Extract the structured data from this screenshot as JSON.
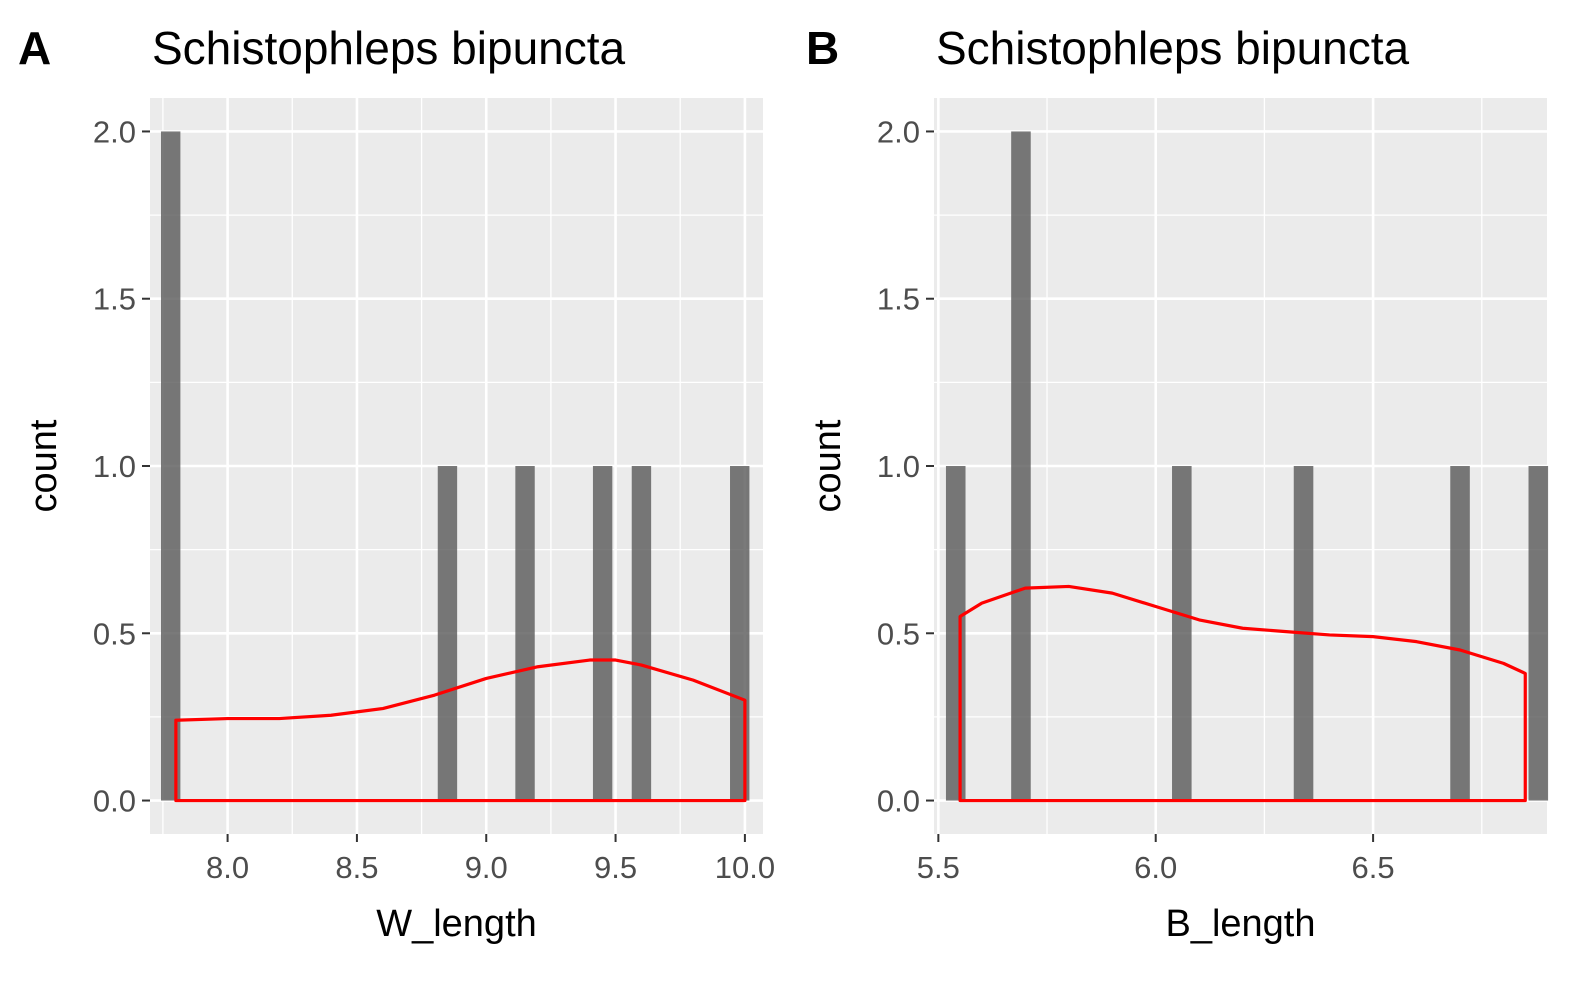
{
  "colors": {
    "panel_background": "#ebebeb",
    "grid_major": "#ffffff",
    "bar_fill": "#595959",
    "density_line": "#ff0000",
    "tick": "#333333",
    "tick_text": "#4d4d4d"
  },
  "chart_data": [
    {
      "type": "bar",
      "panel_tag": "A",
      "title": "Schistophleps bipuncta",
      "xlabel": "W_length",
      "ylabel": "count",
      "xlim": [
        7.7,
        10.07
      ],
      "ylim": [
        -0.1,
        2.1
      ],
      "x_ticks": [
        8.0,
        8.5,
        9.0,
        9.5,
        10.0
      ],
      "x_tick_labels": [
        "8.0",
        "8.5",
        "9.0",
        "9.5",
        "10.0"
      ],
      "x_minor": [
        7.75,
        8.25,
        8.75,
        9.25,
        9.75
      ],
      "y_ticks": [
        0.0,
        0.5,
        1.0,
        1.5,
        2.0
      ],
      "y_tick_labels": [
        "0.0",
        "0.5",
        "1.0",
        "1.5",
        "2.0"
      ],
      "bin_width": 0.075,
      "bins": [
        {
          "x": 7.78,
          "count": 2
        },
        {
          "x": 8.85,
          "count": 1
        },
        {
          "x": 9.15,
          "count": 1
        },
        {
          "x": 9.45,
          "count": 1
        },
        {
          "x": 9.6,
          "count": 1
        },
        {
          "x": 9.98,
          "count": 1
        }
      ],
      "density": {
        "x": [
          7.8,
          8.0,
          8.2,
          8.4,
          8.6,
          8.8,
          9.0,
          9.2,
          9.4,
          9.5,
          9.6,
          9.8,
          10.0
        ],
        "y": [
          0.24,
          0.245,
          0.245,
          0.255,
          0.275,
          0.315,
          0.365,
          0.4,
          0.42,
          0.42,
          0.405,
          0.36,
          0.3
        ]
      },
      "grid": true
    },
    {
      "type": "bar",
      "panel_tag": "B",
      "title": "Schistophleps bipuncta",
      "xlabel": "B_length",
      "ylabel": "count",
      "xlim": [
        5.49,
        6.9
      ],
      "ylim": [
        -0.1,
        2.1
      ],
      "x_ticks": [
        5.5,
        6.0,
        6.5
      ],
      "x_tick_labels": [
        "5.5",
        "6.0",
        "6.5"
      ],
      "x_minor": [
        5.75,
        6.25,
        6.75
      ],
      "y_ticks": [
        0.0,
        0.5,
        1.0,
        1.5,
        2.0
      ],
      "y_tick_labels": [
        "0.0",
        "0.5",
        "1.0",
        "1.5",
        "2.0"
      ],
      "bin_width": 0.045,
      "bins": [
        {
          "x": 5.54,
          "count": 1
        },
        {
          "x": 5.69,
          "count": 2
        },
        {
          "x": 6.06,
          "count": 1
        },
        {
          "x": 6.34,
          "count": 1
        },
        {
          "x": 6.7,
          "count": 1
        },
        {
          "x": 6.88,
          "count": 1
        }
      ],
      "density": {
        "x": [
          5.55,
          5.6,
          5.7,
          5.8,
          5.9,
          6.0,
          6.1,
          6.2,
          6.3,
          6.4,
          6.5,
          6.6,
          6.7,
          6.8,
          6.85
        ],
        "y": [
          0.55,
          0.59,
          0.635,
          0.64,
          0.62,
          0.58,
          0.54,
          0.515,
          0.505,
          0.495,
          0.49,
          0.475,
          0.45,
          0.41,
          0.38
        ]
      },
      "grid": true
    }
  ]
}
